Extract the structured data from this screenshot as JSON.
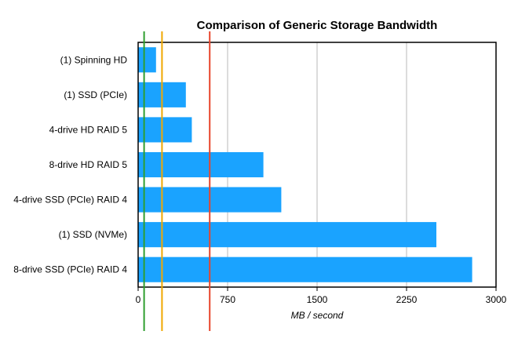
{
  "chart_data": {
    "type": "bar",
    "orientation": "horizontal",
    "title": "Comparison of Generic Storage Bandwidth",
    "xlabel": "MB / second",
    "ylabel": "",
    "categories": [
      "(1) Spinning HD",
      "(1) SSD (PCIe)",
      "4-drive HD RAID 5",
      "8-drive HD RAID 5",
      "4-drive SSD (PCIe) RAID 4",
      "(1) SSD (NVMe)",
      "8-drive SSD (PCIe) RAID 4"
    ],
    "values": [
      150,
      400,
      450,
      1050,
      1200,
      2500,
      2800
    ],
    "xlim": [
      0,
      3000
    ],
    "xticks": [
      0,
      750,
      1500,
      2250,
      3000
    ],
    "grid": true,
    "reference_lines": [
      {
        "value": 50,
        "color": "#2e9e2e"
      },
      {
        "value": 200,
        "color": "#f0a800"
      },
      {
        "value": 600,
        "color": "#e8452c"
      }
    ],
    "bar_color": "#1aa3ff"
  }
}
